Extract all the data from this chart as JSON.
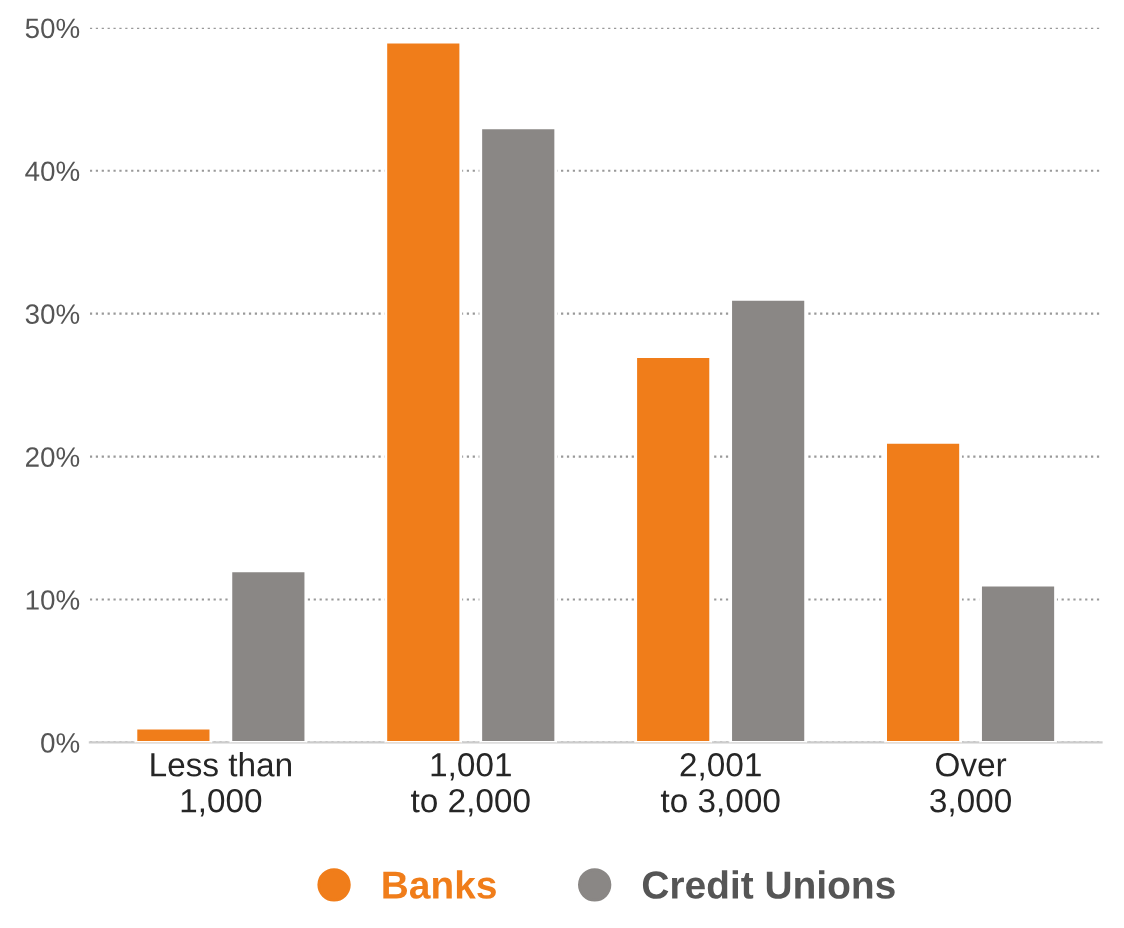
{
  "chart_data": {
    "type": "bar",
    "categories": [
      "Less than\n1,000",
      "1,001\nto 2,000",
      "2,001\nto 3,000",
      "Over\n3,000"
    ],
    "series": [
      {
        "name": "Banks",
        "color": "#f07d1a",
        "values": [
          1,
          49,
          27,
          21
        ]
      },
      {
        "name": "Credit Unions",
        "color": "#8a8785",
        "values": [
          12,
          43,
          31,
          11
        ]
      }
    ],
    "ylim": [
      0,
      50
    ],
    "yticks": [
      {
        "value": 0,
        "label": "0%"
      },
      {
        "value": 10,
        "label": "10%"
      },
      {
        "value": 20,
        "label": "20%"
      },
      {
        "value": 30,
        "label": "30%"
      },
      {
        "value": 40,
        "label": "40%"
      },
      {
        "value": 50,
        "label": "50%"
      }
    ],
    "grid": "y",
    "legend": "bottom"
  }
}
